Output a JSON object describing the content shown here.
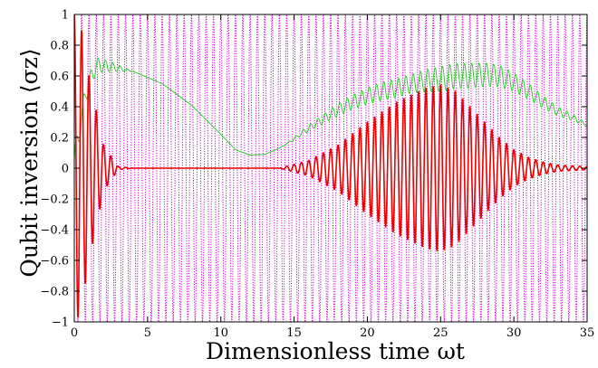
{
  "chart_data": {
    "type": "line",
    "xlabel": "Dimensionless time ωt",
    "ylabel": "Qubit inversion ⟨σz⟩",
    "xlim": [
      0,
      35
    ],
    "ylim": [
      -1,
      1
    ],
    "x_ticks": [
      0,
      5,
      10,
      15,
      20,
      25,
      30,
      35
    ],
    "y_ticks": [
      -1,
      -0.8,
      -0.6,
      -0.4,
      -0.2,
      0,
      0.2,
      0.4,
      0.6,
      0.8,
      1
    ],
    "x_tick_labels": [
      "0",
      "5",
      "10",
      "15",
      "20",
      "25",
      "30",
      "35"
    ],
    "y_tick_labels": [
      "−1",
      "−0.8",
      "−0.6",
      "−0.4",
      "−0.2",
      "0",
      "0.2",
      "0.4",
      "0.6",
      "0.8",
      "1"
    ],
    "grid": false,
    "legend": "none",
    "series": [
      {
        "color": "#cc00cc",
        "style": "dotted",
        "description": "full-amplitude cosine oscillation between -1 and 1",
        "period": 0.5,
        "amplitude": 1
      },
      {
        "color": "#33cc33",
        "style": "solid",
        "envelope": {
          "x": [
            0,
            0.8,
            1.5,
            2.5,
            4,
            6,
            8,
            10,
            11,
            12,
            13,
            14,
            15,
            16,
            17,
            18,
            19,
            20,
            21,
            22,
            23,
            24,
            25,
            26,
            27,
            28,
            29,
            30,
            31,
            32,
            33,
            34,
            35
          ],
          "y": [
            0.05,
            0.5,
            0.67,
            0.66,
            0.63,
            0.55,
            0.41,
            0.22,
            0.12,
            0.085,
            0.09,
            0.13,
            0.19,
            0.26,
            0.32,
            0.38,
            0.43,
            0.47,
            0.5,
            0.52,
            0.55,
            0.57,
            0.58,
            0.6,
            0.6,
            0.61,
            0.6,
            0.56,
            0.5,
            0.43,
            0.37,
            0.33,
            0.28
          ]
        },
        "ripple_amplitude": {
          "x": [
            0,
            2,
            4,
            14,
            16,
            18,
            21,
            23,
            25,
            27,
            29,
            31,
            33,
            35
          ],
          "y": [
            0.08,
            0.04,
            0,
            0,
            0.02,
            0.04,
            0.06,
            0.06,
            0.08,
            0.08,
            0.07,
            0.05,
            0.03,
            0.01
          ]
        },
        "ripple_period": 0.5
      },
      {
        "color": "#ee0000",
        "style": "solid",
        "envelope": {
          "x": [
            0,
            0.4,
            1,
            2,
            3,
            4,
            14,
            16,
            18,
            20,
            22,
            24,
            25,
            26,
            27,
            28,
            29,
            30,
            31,
            32,
            33,
            34,
            35
          ],
          "y": [
            1,
            0.95,
            0.6,
            0.15,
            0.01,
            0,
            0,
            0.05,
            0.15,
            0.3,
            0.43,
            0.52,
            0.54,
            0.5,
            0.4,
            0.3,
            0.2,
            0.12,
            0.07,
            0.04,
            0.02,
            0.015,
            0.01
          ]
        },
        "period": 0.5
      }
    ]
  }
}
